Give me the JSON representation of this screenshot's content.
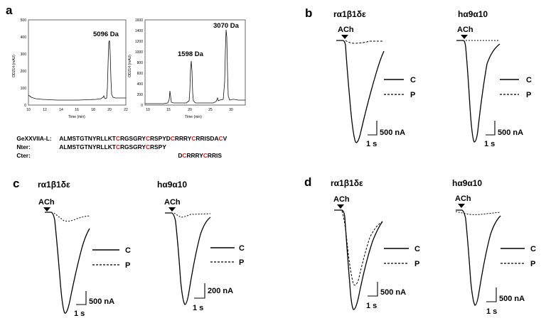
{
  "panels": {
    "a": {
      "letter": "a"
    },
    "b": {
      "letter": "b"
    },
    "c": {
      "letter": "c"
    },
    "d": {
      "letter": "d"
    }
  },
  "chromatograms": {
    "left": {
      "ylabel": "OD214 (mAU)",
      "xlabel": "Time (min)",
      "y_ticks": [
        "0",
        "100",
        "200",
        "300",
        "400",
        "500"
      ],
      "x_ticks": [
        "10",
        "12",
        "14",
        "16",
        "18",
        "20",
        "22"
      ],
      "peak_label": "5096 Da"
    },
    "right": {
      "ylabel": "OD214 (mAU)",
      "xlabel": "Time (min)",
      "y_ticks": [
        "0",
        "200",
        "400",
        "600",
        "800",
        "1000",
        "1200",
        "1400",
        "1600"
      ],
      "x_ticks": [
        "10",
        "15",
        "20",
        "25",
        "30"
      ],
      "peak_label_1": "1598 Da",
      "peak_label_2": "3070 Da"
    }
  },
  "sequences": [
    {
      "label": "GeXXVIIA-L:",
      "indent": 0,
      "parts": [
        "ALMSTGTNYRLLKT",
        "C",
        "RGSGRY",
        "C",
        "RSPYD",
        "C",
        "RRRY",
        "C",
        "RRISDA",
        "C",
        "V"
      ]
    },
    {
      "label": "Nter:",
      "indent": 0,
      "parts": [
        "ALMSTGTNYRLLKT",
        "C",
        "RGSGRY",
        "C",
        "RSPY"
      ]
    },
    {
      "label": "Cter:",
      "indent": 28,
      "parts": [
        "D",
        "C",
        "RRRY",
        "C",
        "RRIS"
      ]
    }
  ],
  "electrophys": {
    "receptor_muscle": "rα1β1δε",
    "receptor_h": "hα9α10",
    "agonist": "ACh",
    "legend_c": "C",
    "legend_p": "P",
    "scale_500": "500 nA",
    "scale_200": "200 nA",
    "scale_time": "1 s"
  }
}
